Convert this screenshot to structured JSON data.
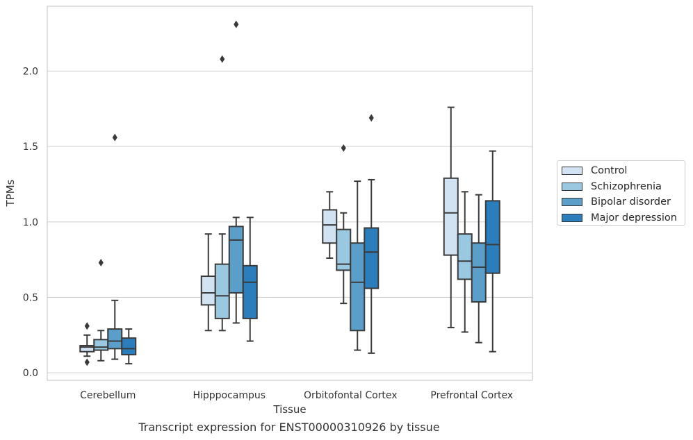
{
  "chart_data": {
    "type": "box",
    "xlabel": "Tissue",
    "ylabel": "TPMs",
    "caption": "Transcript expression for ENST00000310926 by tissue",
    "ylim": [
      -0.05,
      2.43
    ],
    "yticks": [
      "0.0",
      "0.5",
      "1.0",
      "1.5",
      "2.0"
    ],
    "grid": "horizontal",
    "legend_position": "outside-right",
    "categories": [
      "Cerebellum",
      "Hipppocampus",
      "Orbitofontal Cortex",
      "Prefrontal Cortex"
    ],
    "series": [
      {
        "name": "Control",
        "color": "#d1e2f3",
        "boxes": [
          {
            "whislo": 0.11,
            "q1": 0.14,
            "med": 0.17,
            "q3": 0.18,
            "whishi": 0.25,
            "fliers": [
              0.31,
              0.07
            ]
          },
          {
            "whislo": 0.28,
            "q1": 0.45,
            "med": 0.53,
            "q3": 0.64,
            "whishi": 0.92,
            "fliers": []
          },
          {
            "whislo": 0.76,
            "q1": 0.86,
            "med": 0.98,
            "q3": 1.08,
            "whishi": 1.2,
            "fliers": []
          },
          {
            "whislo": 0.3,
            "q1": 0.78,
            "med": 1.06,
            "q3": 1.29,
            "whishi": 1.76,
            "fliers": []
          }
        ]
      },
      {
        "name": "Schizophrenia",
        "color": "#9ac8e0",
        "boxes": [
          {
            "whislo": 0.08,
            "q1": 0.15,
            "med": 0.17,
            "q3": 0.22,
            "whishi": 0.28,
            "fliers": [
              0.73
            ]
          },
          {
            "whislo": 0.28,
            "q1": 0.36,
            "med": 0.51,
            "q3": 0.72,
            "whishi": 0.92,
            "fliers": [
              2.08
            ]
          },
          {
            "whislo": 0.46,
            "q1": 0.68,
            "med": 0.72,
            "q3": 0.95,
            "whishi": 1.06,
            "fliers": [
              1.49
            ]
          },
          {
            "whislo": 0.27,
            "q1": 0.62,
            "med": 0.74,
            "q3": 0.92,
            "whishi": 1.2,
            "fliers": []
          }
        ]
      },
      {
        "name": "Bipolar disorder",
        "color": "#5a9ec9",
        "boxes": [
          {
            "whislo": 0.09,
            "q1": 0.16,
            "med": 0.21,
            "q3": 0.29,
            "whishi": 0.48,
            "fliers": [
              1.56
            ]
          },
          {
            "whislo": 0.33,
            "q1": 0.53,
            "med": 0.88,
            "q3": 0.97,
            "whishi": 1.03,
            "fliers": [
              2.31
            ]
          },
          {
            "whislo": 0.15,
            "q1": 0.28,
            "med": 0.6,
            "q3": 0.86,
            "whishi": 1.27,
            "fliers": []
          },
          {
            "whislo": 0.2,
            "q1": 0.47,
            "med": 0.7,
            "q3": 0.86,
            "whishi": 1.18,
            "fliers": []
          }
        ]
      },
      {
        "name": "Major depression",
        "color": "#2c7dbb",
        "boxes": [
          {
            "whislo": 0.06,
            "q1": 0.12,
            "med": 0.16,
            "q3": 0.23,
            "whishi": 0.29,
            "fliers": []
          },
          {
            "whislo": 0.21,
            "q1": 0.36,
            "med": 0.6,
            "q3": 0.71,
            "whishi": 1.03,
            "fliers": []
          },
          {
            "whislo": 0.13,
            "q1": 0.56,
            "med": 0.8,
            "q3": 0.96,
            "whishi": 1.28,
            "fliers": [
              1.69
            ]
          },
          {
            "whislo": 0.14,
            "q1": 0.66,
            "med": 0.85,
            "q3": 1.14,
            "whishi": 1.47,
            "fliers": []
          }
        ]
      }
    ]
  }
}
